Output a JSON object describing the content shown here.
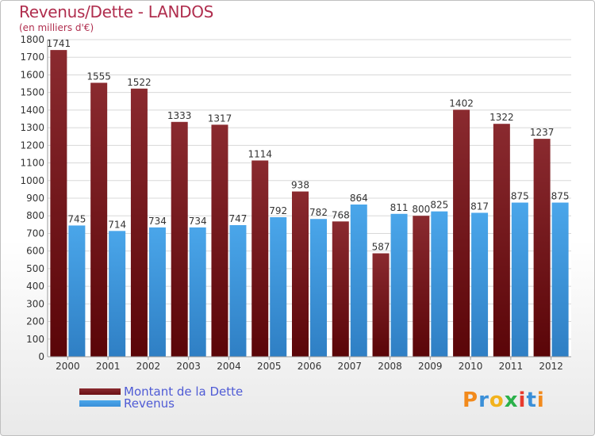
{
  "title": "Revenus/Dette - LANDOS",
  "subtitle": "(en milliers d'€)",
  "logo": "Proxiti",
  "colors": {
    "dette": "#6b0f13",
    "revenus": "#3a8fd8"
  },
  "chart_data": {
    "type": "bar",
    "categories": [
      "2000",
      "2001",
      "2002",
      "2003",
      "2004",
      "2005",
      "2006",
      "2007",
      "2008",
      "2009",
      "2010",
      "2011",
      "2012"
    ],
    "series": [
      {
        "name": "Montant de la Dette",
        "values": [
          1741,
          1555,
          1522,
          1333,
          1317,
          1114,
          938,
          768,
          587,
          800,
          1402,
          1322,
          1237
        ]
      },
      {
        "name": "Revenus",
        "values": [
          745,
          714,
          734,
          734,
          747,
          792,
          782,
          864,
          811,
          825,
          817,
          875,
          875
        ]
      }
    ],
    "ylim": [
      0,
      1800
    ],
    "yticks": [
      0,
      100,
      200,
      300,
      400,
      500,
      600,
      700,
      800,
      900,
      1000,
      1100,
      1200,
      1300,
      1400,
      1500,
      1600,
      1700,
      1800
    ],
    "grid": true,
    "legend_position": "bottom-left"
  }
}
